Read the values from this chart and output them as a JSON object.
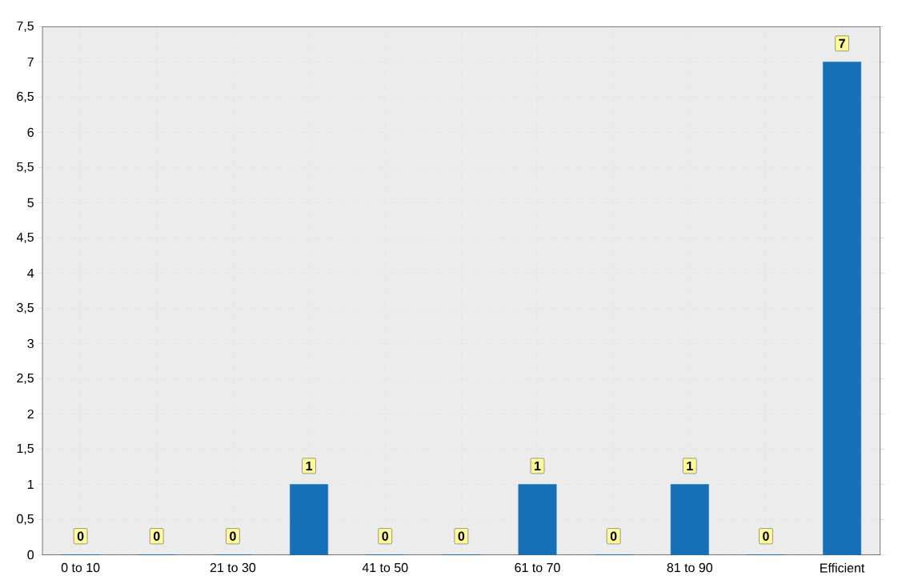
{
  "chart_data": {
    "type": "bar",
    "categories": [
      "0 to 10",
      null,
      "21 to 30",
      null,
      "41 to 50",
      null,
      "61 to 70",
      null,
      "81 to 90",
      null,
      "Efficient"
    ],
    "values": [
      0,
      0,
      0,
      1,
      0,
      0,
      1,
      0,
      1,
      0,
      7
    ],
    "color": "#1670b8",
    "ylim": [
      0,
      7.5
    ],
    "yticks": [
      0,
      {
        "value": 0.5,
        "label": "0,5"
      },
      1,
      {
        "value": 1.5,
        "label": "1,5"
      },
      2,
      {
        "value": 2.5,
        "label": "2,5"
      },
      3,
      {
        "value": 3.5,
        "label": "3,5"
      },
      4,
      {
        "value": 4.5,
        "label": "4,5"
      },
      5,
      {
        "value": 5.5,
        "label": "5,5"
      },
      6,
      {
        "value": 6.5,
        "label": "6,5"
      },
      7,
      {
        "value": 7.5,
        "label": "7,5"
      }
    ],
    "grid": true,
    "data_labels": true
  }
}
